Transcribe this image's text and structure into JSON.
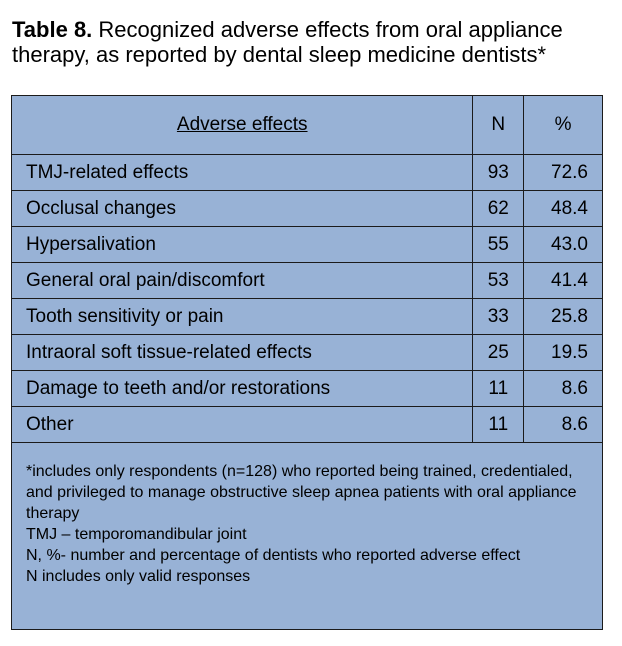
{
  "caption": {
    "label": "Table 8.",
    "text": " Recognized adverse effects from oral appliance therapy, as reported by dental sleep medicine dentists*"
  },
  "table": {
    "headers": {
      "effect": "Adverse effects",
      "n": "N",
      "pct": "%"
    },
    "rows": [
      {
        "effect": "TMJ-related effects",
        "n": "93",
        "pct": "72.6"
      },
      {
        "effect": "Occlusal changes",
        "n": "62",
        "pct": "48.4"
      },
      {
        "effect": "Hypersalivation",
        "n": "55",
        "pct": "43.0"
      },
      {
        "effect": "General oral pain/discomfort",
        "n": "53",
        "pct": "41.4"
      },
      {
        "effect": "Tooth sensitivity or pain",
        "n": "33",
        "pct": "25.8"
      },
      {
        "effect": "Intraoral soft tissue-related effects",
        "n": "25",
        "pct": "19.5"
      },
      {
        "effect": "Damage to teeth and/or restorations",
        "n": "11",
        "pct": "8.6"
      },
      {
        "effect": "Other",
        "n": "11",
        "pct": "8.6"
      }
    ],
    "footnotes": [
      "*includes only respondents (n=128) who reported being trained, credentialed, and privileged to manage obstructive sleep apnea patients with oral appliance therapy",
      "TMJ – temporomandibular joint",
      "N, %- number and percentage of dentists who reported adverse effect",
      "N includes only valid responses"
    ]
  }
}
